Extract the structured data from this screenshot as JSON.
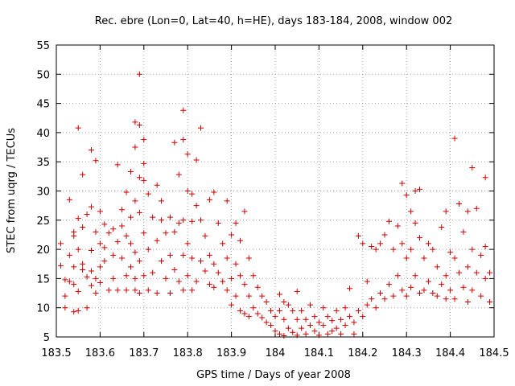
{
  "chart_data": {
    "type": "scatter",
    "title": "Rec. ebre (Lon=0, Lat=40, h=HE), days 183-184, 2008, window 002",
    "xlabel": "GPS time / Days of year 2008",
    "ylabel": "STEC from uqrg / TECUs",
    "xlim": [
      183.5,
      184.5
    ],
    "ylim": [
      5,
      55
    ],
    "x_ticks": [
      "183.5",
      "183.6",
      "183.7",
      "183.8",
      "183.9",
      "184",
      "184.1",
      "184.2",
      "184.3",
      "184.4",
      "184.5"
    ],
    "y_ticks": [
      "5",
      "10",
      "15",
      "20",
      "25",
      "30",
      "35",
      "40",
      "45",
      "50",
      "55"
    ],
    "grid": true,
    "marker": "plus",
    "colors": {
      "series": "#cc0000",
      "grid": "#a0a0a0",
      "axes": "#000000"
    },
    "points": [
      [
        183.51,
        21.0
      ],
      [
        183.51,
        17.2
      ],
      [
        183.52,
        14.8
      ],
      [
        183.52,
        12.0
      ],
      [
        183.52,
        10.0
      ],
      [
        183.53,
        28.5
      ],
      [
        183.53,
        19.0
      ],
      [
        183.53,
        14.5
      ],
      [
        183.54,
        23.0
      ],
      [
        183.54,
        22.3
      ],
      [
        183.54,
        17.0
      ],
      [
        183.54,
        14.0
      ],
      [
        183.55,
        25.3
      ],
      [
        183.55,
        20.0
      ],
      [
        183.55,
        12.8
      ],
      [
        183.55,
        9.5
      ],
      [
        183.54,
        9.3
      ],
      [
        183.55,
        40.8
      ],
      [
        183.56,
        32.8
      ],
      [
        183.56,
        23.8
      ],
      [
        183.56,
        17.5
      ],
      [
        183.56,
        16.5
      ],
      [
        183.57,
        26.0
      ],
      [
        183.57,
        15.3
      ],
      [
        183.57,
        10.0
      ],
      [
        183.58,
        37.0
      ],
      [
        183.58,
        27.3
      ],
      [
        183.58,
        19.8
      ],
      [
        183.58,
        16.3
      ],
      [
        183.58,
        13.8
      ],
      [
        183.59,
        35.2
      ],
      [
        183.59,
        23.0
      ],
      [
        183.59,
        15.0
      ],
      [
        183.59,
        12.5
      ],
      [
        183.6,
        26.5
      ],
      [
        183.6,
        21.0
      ],
      [
        183.6,
        17.0
      ],
      [
        183.6,
        14.3
      ],
      [
        183.61,
        24.3
      ],
      [
        183.61,
        20.3
      ],
      [
        183.61,
        18.0
      ],
      [
        183.62,
        13.0
      ],
      [
        183.62,
        22.8
      ],
      [
        183.63,
        23.5
      ],
      [
        183.63,
        19.0
      ],
      [
        183.63,
        15.0
      ],
      [
        183.64,
        34.5
      ],
      [
        183.64,
        21.3
      ],
      [
        183.64,
        13.0
      ],
      [
        183.65,
        26.8
      ],
      [
        183.65,
        24.0
      ],
      [
        183.65,
        18.5
      ],
      [
        183.66,
        29.8
      ],
      [
        183.66,
        22.3
      ],
      [
        183.66,
        15.5
      ],
      [
        183.66,
        13.0
      ],
      [
        183.67,
        33.3
      ],
      [
        183.67,
        25.5
      ],
      [
        183.67,
        21.0
      ],
      [
        183.67,
        17.0
      ],
      [
        183.68,
        41.8
      ],
      [
        183.68,
        37.5
      ],
      [
        183.68,
        28.3
      ],
      [
        183.68,
        19.5
      ],
      [
        183.68,
        15.0
      ],
      [
        183.68,
        13.0
      ],
      [
        183.69,
        50.0
      ],
      [
        183.69,
        41.3
      ],
      [
        183.69,
        32.3
      ],
      [
        183.69,
        26.3
      ],
      [
        183.69,
        18.0
      ],
      [
        183.69,
        12.5
      ],
      [
        183.7,
        38.8
      ],
      [
        183.7,
        34.7
      ],
      [
        183.7,
        31.8
      ],
      [
        183.7,
        22.8
      ],
      [
        183.7,
        15.5
      ],
      [
        183.71,
        29.5
      ],
      [
        183.71,
        20.0
      ],
      [
        183.71,
        13.0
      ],
      [
        183.72,
        25.5
      ],
      [
        183.72,
        16.0
      ],
      [
        183.73,
        31.0
      ],
      [
        183.73,
        21.5
      ],
      [
        183.73,
        12.5
      ],
      [
        183.74,
        28.3
      ],
      [
        183.74,
        25.0
      ],
      [
        183.74,
        18.0
      ],
      [
        183.75,
        22.8
      ],
      [
        183.75,
        15.0
      ],
      [
        183.76,
        25.5
      ],
      [
        183.76,
        19.0
      ],
      [
        183.76,
        12.5
      ],
      [
        183.77,
        38.3
      ],
      [
        183.77,
        23.0
      ],
      [
        183.77,
        16.5
      ],
      [
        183.78,
        32.8
      ],
      [
        183.78,
        24.5
      ],
      [
        183.78,
        14.5
      ],
      [
        183.79,
        43.8
      ],
      [
        183.79,
        38.8
      ],
      [
        183.79,
        25.0
      ],
      [
        183.79,
        19.0
      ],
      [
        183.79,
        13.0
      ],
      [
        183.8,
        36.3
      ],
      [
        183.8,
        30.0
      ],
      [
        183.8,
        21.0
      ],
      [
        183.8,
        15.5
      ],
      [
        183.81,
        29.5
      ],
      [
        183.81,
        24.8
      ],
      [
        183.81,
        18.5
      ],
      [
        183.81,
        13.0
      ],
      [
        183.82,
        35.3
      ],
      [
        183.82,
        27.5
      ],
      [
        183.82,
        14.5
      ],
      [
        183.83,
        40.8
      ],
      [
        183.83,
        25.0
      ],
      [
        183.83,
        18.0
      ],
      [
        183.84,
        22.3
      ],
      [
        183.84,
        16.3
      ],
      [
        183.85,
        28.5
      ],
      [
        183.85,
        19.0
      ],
      [
        183.85,
        14.0
      ],
      [
        183.86,
        29.8
      ],
      [
        183.86,
        17.5
      ],
      [
        183.86,
        13.5
      ],
      [
        183.87,
        24.5
      ],
      [
        183.87,
        16.0
      ],
      [
        183.88,
        21.0
      ],
      [
        183.88,
        14.5
      ],
      [
        183.89,
        28.3
      ],
      [
        183.89,
        18.5
      ],
      [
        183.89,
        13.0
      ],
      [
        183.9,
        22.5
      ],
      [
        183.9,
        15.0
      ],
      [
        183.9,
        10.5
      ],
      [
        183.91,
        24.5
      ],
      [
        183.91,
        17.5
      ],
      [
        183.91,
        12.0
      ],
      [
        183.92,
        21.5
      ],
      [
        183.92,
        15.5
      ],
      [
        183.92,
        9.5
      ],
      [
        183.93,
        26.5
      ],
      [
        183.93,
        14.0
      ],
      [
        183.93,
        9.0
      ],
      [
        183.94,
        18.5
      ],
      [
        183.94,
        12.0
      ],
      [
        183.94,
        8.5
      ],
      [
        183.95,
        15.5
      ],
      [
        183.95,
        10.0
      ],
      [
        183.96,
        13.5
      ],
      [
        183.96,
        9.0
      ],
      [
        183.97,
        12.0
      ],
      [
        183.97,
        8.3
      ],
      [
        183.98,
        11.0
      ],
      [
        183.98,
        7.5
      ],
      [
        183.99,
        9.5
      ],
      [
        183.99,
        7.0
      ],
      [
        184.0,
        8.5
      ],
      [
        184.0,
        6.0
      ],
      [
        184.01,
        12.3
      ],
      [
        184.01,
        9.5
      ],
      [
        184.01,
        5.5
      ],
      [
        184.02,
        11.0
      ],
      [
        184.02,
        8.0
      ],
      [
        184.02,
        5.2
      ],
      [
        184.03,
        10.5
      ],
      [
        184.03,
        6.5
      ],
      [
        184.04,
        9.5
      ],
      [
        184.04,
        5.8
      ],
      [
        184.05,
        12.8
      ],
      [
        184.05,
        8.0
      ],
      [
        184.05,
        5.3
      ],
      [
        184.06,
        9.5
      ],
      [
        184.06,
        6.5
      ],
      [
        184.07,
        8.0
      ],
      [
        184.07,
        5.5
      ],
      [
        184.08,
        10.5
      ],
      [
        184.08,
        7.0
      ],
      [
        184.09,
        8.5
      ],
      [
        184.09,
        6.0
      ],
      [
        184.1,
        7.5
      ],
      [
        184.1,
        5.3
      ],
      [
        184.11,
        10.0
      ],
      [
        184.11,
        7.0
      ],
      [
        184.12,
        8.5
      ],
      [
        184.12,
        5.5
      ],
      [
        184.13,
        7.8
      ],
      [
        184.13,
        6.0
      ],
      [
        184.14,
        9.5
      ],
      [
        184.14,
        6.5
      ],
      [
        184.15,
        8.0
      ],
      [
        184.15,
        5.5
      ],
      [
        184.16,
        10.0
      ],
      [
        184.16,
        7.0
      ],
      [
        184.17,
        13.3
      ],
      [
        184.17,
        8.5
      ],
      [
        184.18,
        7.5
      ],
      [
        184.18,
        5.5
      ],
      [
        184.19,
        22.3
      ],
      [
        184.19,
        9.5
      ],
      [
        184.2,
        21.0
      ],
      [
        184.2,
        8.5
      ],
      [
        184.21,
        14.5
      ],
      [
        184.21,
        10.5
      ],
      [
        184.22,
        20.5
      ],
      [
        184.22,
        11.5
      ],
      [
        184.23,
        20.0
      ],
      [
        184.23,
        10.0
      ],
      [
        184.24,
        21.0
      ],
      [
        184.24,
        12.5
      ],
      [
        184.25,
        22.5
      ],
      [
        184.25,
        11.5
      ],
      [
        184.26,
        24.8
      ],
      [
        184.26,
        14.0
      ],
      [
        184.27,
        20.0
      ],
      [
        184.27,
        12.0
      ],
      [
        184.28,
        24.0
      ],
      [
        184.28,
        15.5
      ],
      [
        184.29,
        31.3
      ],
      [
        184.29,
        21.0
      ],
      [
        184.29,
        13.0
      ],
      [
        184.3,
        29.3
      ],
      [
        184.3,
        18.5
      ],
      [
        184.3,
        12.0
      ],
      [
        184.31,
        26.5
      ],
      [
        184.31,
        20.0
      ],
      [
        184.31,
        13.5
      ],
      [
        184.32,
        30.0
      ],
      [
        184.32,
        24.5
      ],
      [
        184.32,
        15.5
      ],
      [
        184.33,
        30.3
      ],
      [
        184.33,
        22.0
      ],
      [
        184.33,
        12.5
      ],
      [
        184.34,
        18.5
      ],
      [
        184.34,
        13.0
      ],
      [
        184.35,
        21.0
      ],
      [
        184.35,
        14.5
      ],
      [
        184.36,
        20.0
      ],
      [
        184.36,
        12.5
      ],
      [
        184.37,
        17.0
      ],
      [
        184.37,
        12.0
      ],
      [
        184.38,
        23.8
      ],
      [
        184.38,
        14.0
      ],
      [
        184.39,
        26.5
      ],
      [
        184.39,
        15.5
      ],
      [
        184.39,
        11.5
      ],
      [
        184.4,
        19.5
      ],
      [
        184.4,
        13.0
      ],
      [
        184.41,
        39.0
      ],
      [
        184.41,
        18.5
      ],
      [
        184.41,
        11.5
      ],
      [
        184.42,
        27.8
      ],
      [
        184.42,
        16.0
      ],
      [
        184.43,
        23.0
      ],
      [
        184.43,
        13.5
      ],
      [
        184.44,
        26.5
      ],
      [
        184.44,
        17.0
      ],
      [
        184.44,
        11.0
      ],
      [
        184.45,
        34.0
      ],
      [
        184.45,
        20.0
      ],
      [
        184.45,
        13.0
      ],
      [
        184.46,
        27.0
      ],
      [
        184.46,
        16.0
      ],
      [
        184.47,
        19.0
      ],
      [
        184.47,
        12.0
      ],
      [
        184.48,
        32.3
      ],
      [
        184.48,
        20.5
      ],
      [
        184.48,
        15.0
      ],
      [
        184.49,
        16.0
      ],
      [
        184.49,
        11.0
      ]
    ]
  }
}
